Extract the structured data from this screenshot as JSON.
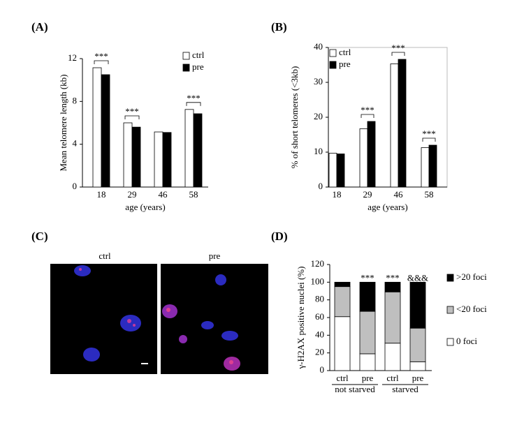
{
  "chart_data": [
    {
      "type": "bar",
      "label": "(A)",
      "y_label": "Mean telomere length (kb)",
      "x_label": "age (years)",
      "categories": [
        "18",
        "29",
        "46",
        "58"
      ],
      "series": [
        {
          "name": "ctrl",
          "color": "#ffffff",
          "values": [
            11.15,
            6.0,
            5.15,
            7.25
          ]
        },
        {
          "name": "pre",
          "color": "#000000",
          "values": [
            10.5,
            5.6,
            5.1,
            6.85
          ]
        }
      ],
      "significance": [
        "***",
        "***",
        null,
        "***"
      ],
      "ylim": [
        0,
        12
      ],
      "yticks": [
        0,
        4,
        8,
        12
      ],
      "legend": "top-right",
      "box": false
    },
    {
      "type": "bar",
      "label": "(B)",
      "y_label": "% of short telomeres (<3kb)",
      "x_label": "age (years)",
      "categories": [
        "18",
        "29",
        "46",
        "58"
      ],
      "series": [
        {
          "name": "ctrl",
          "color": "#ffffff",
          "values": [
            9.7,
            16.7,
            35.3,
            11.3
          ]
        },
        {
          "name": "pre",
          "color": "#000000",
          "values": [
            9.5,
            18.8,
            36.6,
            12.0
          ]
        }
      ],
      "significance": [
        null,
        "***",
        "***",
        "***"
      ],
      "ylim": [
        0,
        40
      ],
      "yticks": [
        0,
        10,
        20,
        30,
        40
      ],
      "legend": "top-left",
      "box": true
    },
    {
      "type": "stacked_bar",
      "label": "(D)",
      "y_label": "γ-H2AX positive nuclei (%)",
      "categories": [
        "ctrl",
        "pre",
        "ctrl",
        "pre"
      ],
      "groups": [
        "not starved",
        "starved"
      ],
      "series": [
        {
          "name": "0 foci",
          "color": "#ffffff",
          "values": [
            61,
            19,
            31,
            10
          ]
        },
        {
          "name": "<20 foci",
          "color": "#bfbfbf",
          "values": [
            34,
            48,
            58,
            38
          ]
        },
        {
          "name": ">20 foci",
          "color": "#000000",
          "values": [
            5,
            33,
            11,
            52
          ]
        }
      ],
      "significance": [
        null,
        "***",
        "***",
        "&&&"
      ],
      "ylim": [
        0,
        120
      ],
      "yticks": [
        0,
        20,
        40,
        60,
        80,
        100,
        120
      ],
      "legend": "right",
      "box": false
    }
  ],
  "image_panel": {
    "label": "(C)",
    "images": [
      "ctrl",
      "pre"
    ]
  }
}
